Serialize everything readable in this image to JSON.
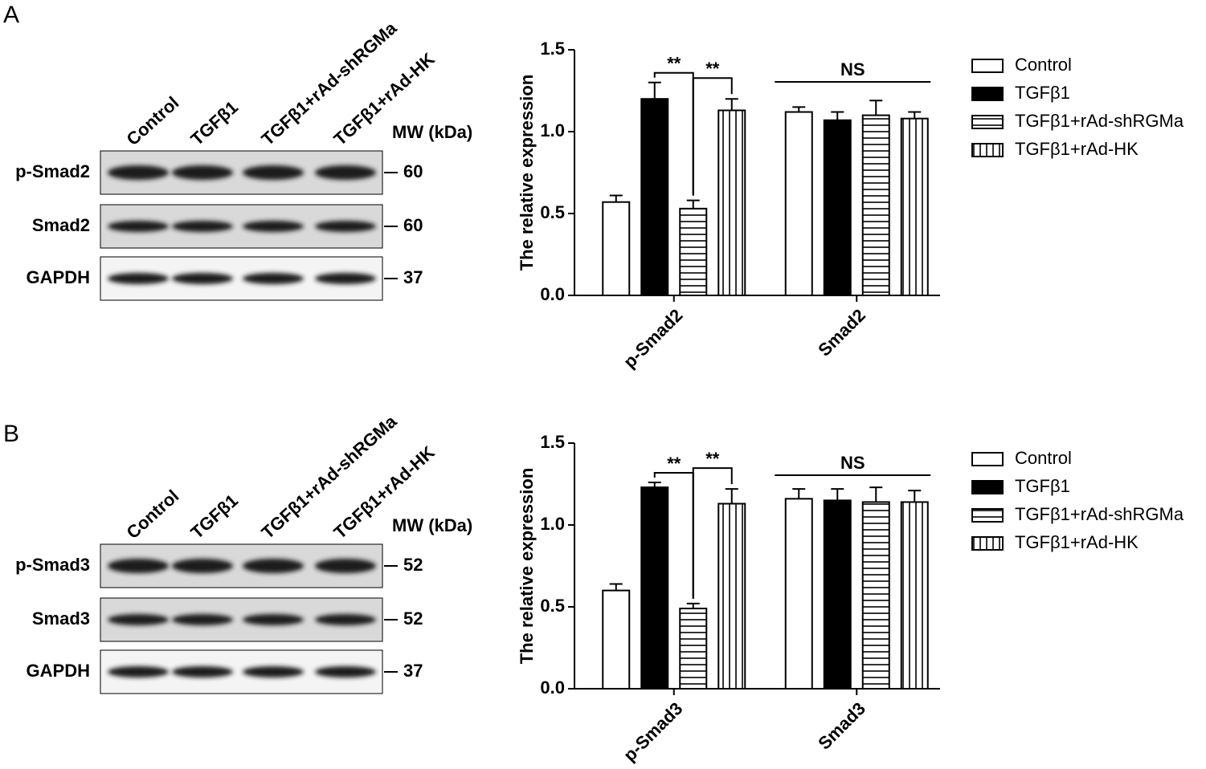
{
  "panels": [
    {
      "label": "A",
      "blot": {
        "lanes": [
          "Control",
          "TGFβ1",
          "TGFβ1+rAd-shRGMa",
          "TGFβ1+rAd-HK"
        ],
        "mw_header": "MW (kDa)",
        "rows": [
          {
            "protein": "p-Smad2",
            "mw": 60
          },
          {
            "protein": "Smad2",
            "mw": 60
          },
          {
            "protein": "GAPDH",
            "mw": 37
          }
        ]
      }
    },
    {
      "label": "B",
      "blot": {
        "lanes": [
          "Control",
          "TGFβ1",
          "TGFβ1+rAd-shRGMa",
          "TGFβ1+rAd-HK"
        ],
        "mw_header": "MW (kDa)",
        "rows": [
          {
            "protein": "p-Smad3",
            "mw": 52
          },
          {
            "protein": "Smad3",
            "mw": 52
          },
          {
            "protein": "GAPDH",
            "mw": 37
          }
        ]
      }
    }
  ],
  "chart_data": [
    {
      "type": "bar",
      "ylabel": "The relative expression",
      "categories": [
        "p-Smad2",
        "Smad2"
      ],
      "series": [
        {
          "name": "Control",
          "color": "#ffffff",
          "pattern": "none",
          "values": [
            0.57,
            1.12
          ],
          "errors": [
            0.04,
            0.03
          ]
        },
        {
          "name": "TGFβ1",
          "color": "#000000",
          "pattern": "solid",
          "values": [
            1.2,
            1.07
          ],
          "errors": [
            0.1,
            0.05
          ]
        },
        {
          "name": "TGFβ1+rAd-shRGMa",
          "color": "#ffffff",
          "pattern": "horizontal",
          "values": [
            0.53,
            1.1
          ],
          "errors": [
            0.05,
            0.09
          ]
        },
        {
          "name": "TGFβ1+rAd-HK",
          "color": "#ffffff",
          "pattern": "vertical",
          "values": [
            1.13,
            1.08
          ],
          "errors": [
            0.07,
            0.04
          ]
        }
      ],
      "ylim": [
        0,
        1.5
      ],
      "yticks": [
        {
          "value": 0,
          "label": "0.0"
        },
        0.5,
        {
          "value": 1,
          "label": "1.0"
        },
        1.5
      ],
      "legend": "right",
      "annotations": [
        {
          "text": "**",
          "category": 0,
          "series": [
            1,
            2
          ]
        },
        {
          "text": "**",
          "category": 0,
          "series": [
            2,
            3
          ]
        },
        {
          "text": "NS",
          "category": 1,
          "series": [
            0,
            3
          ]
        }
      ]
    },
    {
      "type": "bar",
      "ylabel": "The relative expression",
      "categories": [
        "p-Smad3",
        "Smad3"
      ],
      "series": [
        {
          "name": "Control",
          "color": "#ffffff",
          "pattern": "none",
          "values": [
            0.6,
            1.16
          ],
          "errors": [
            0.04,
            0.06
          ]
        },
        {
          "name": "TGFβ1",
          "color": "#000000",
          "pattern": "solid",
          "values": [
            1.23,
            1.15
          ],
          "errors": [
            0.03,
            0.07
          ]
        },
        {
          "name": "TGFβ1+rAd-shRGMa",
          "color": "#ffffff",
          "pattern": "horizontal",
          "values": [
            0.49,
            1.14
          ],
          "errors": [
            0.03,
            0.09
          ]
        },
        {
          "name": "TGFβ1+rAd-HK",
          "color": "#ffffff",
          "pattern": "vertical",
          "values": [
            1.13,
            1.14
          ],
          "errors": [
            0.09,
            0.07
          ]
        }
      ],
      "ylim": [
        0,
        1.5
      ],
      "yticks": [
        {
          "value": 0,
          "label": "0.0"
        },
        0.5,
        {
          "value": 1,
          "label": "1.0"
        },
        1.5
      ],
      "legend": "right",
      "annotations": [
        {
          "text": "**",
          "category": 0,
          "series": [
            1,
            2
          ]
        },
        {
          "text": "**",
          "category": 0,
          "series": [
            2,
            3
          ]
        },
        {
          "text": "NS",
          "category": 1,
          "series": [
            0,
            3
          ]
        }
      ]
    }
  ]
}
